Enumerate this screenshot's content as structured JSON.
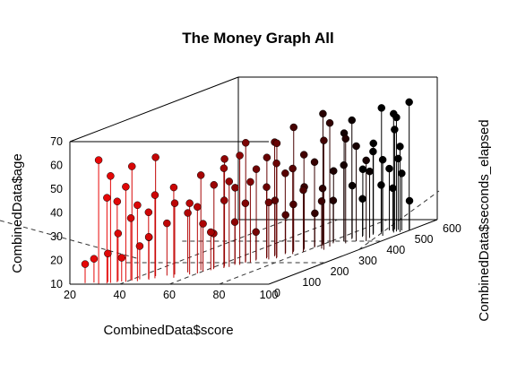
{
  "chart_data": {
    "type": "scatter",
    "title": "The Money Graph All",
    "xlabel": "CombinedData$score",
    "ylabel": "CombinedData$seconds_elapsed",
    "zlabel": "CombinedData$age",
    "xlim": [
      20,
      100
    ],
    "ylim": [
      0,
      600
    ],
    "zlim": [
      10,
      70
    ],
    "x_ticks": [
      "20",
      "40",
      "60",
      "80",
      "100"
    ],
    "y_ticks": [
      "0",
      "100",
      "200",
      "300",
      "400",
      "500",
      "600"
    ],
    "z_ticks": [
      "10",
      "20",
      "30",
      "40",
      "50",
      "60",
      "70"
    ],
    "type_h_drop_lines": true,
    "color_gradient": [
      "#ff0000",
      "#000000"
    ],
    "grid": "dashed base plane grid",
    "points": {
      "x_score": [
        25,
        28,
        31,
        33,
        34,
        35,
        36,
        37,
        38,
        40,
        40,
        41,
        43,
        44,
        45,
        46,
        46,
        47,
        48,
        50,
        52,
        55,
        58,
        60,
        61,
        62,
        63,
        64,
        65,
        66,
        67,
        68,
        69,
        70,
        71,
        72,
        72,
        73,
        74,
        75,
        75,
        76,
        77,
        78,
        79,
        80,
        80,
        81,
        82,
        83,
        84,
        85,
        85,
        86,
        87,
        88,
        89,
        90,
        90,
        91,
        92,
        93,
        94,
        95,
        96,
        97,
        98,
        99,
        55,
        60,
        65,
        70,
        75,
        80,
        85,
        90,
        95,
        100,
        62,
        68,
        74,
        78,
        84,
        88,
        92,
        96,
        58,
        66,
        76,
        86,
        94
      ],
      "y_seconds": [
        10,
        15,
        5,
        20,
        8,
        12,
        30,
        18,
        25,
        40,
        22,
        35,
        45,
        28,
        60,
        50,
        75,
        42,
        55,
        80,
        90,
        110,
        130,
        120,
        150,
        140,
        170,
        160,
        190,
        180,
        210,
        200,
        230,
        220,
        250,
        240,
        270,
        260,
        290,
        280,
        310,
        300,
        330,
        320,
        350,
        340,
        370,
        360,
        390,
        380,
        410,
        400,
        430,
        420,
        450,
        440,
        470,
        460,
        490,
        480,
        500,
        510,
        495,
        505,
        490,
        500,
        485,
        510,
        60,
        100,
        150,
        200,
        250,
        300,
        350,
        400,
        450,
        500,
        130,
        180,
        230,
        280,
        330,
        380,
        430,
        480,
        90,
        160,
        240,
        320,
        400
      ],
      "z_age": [
        18,
        20,
        62,
        22,
        46,
        55,
        30,
        44,
        20,
        36,
        50,
        58,
        24,
        42,
        27,
        38,
        60,
        28,
        45,
        32,
        40,
        35,
        50,
        30,
        45,
        25,
        55,
        38,
        42,
        28,
        60,
        35,
        48,
        22,
        52,
        40,
        33,
        58,
        26,
        44,
        62,
        30,
        36,
        50,
        24,
        46,
        65,
        34,
        40,
        28,
        55,
        42,
        32,
        60,
        38,
        26,
        48,
        45,
        62,
        30,
        36,
        52,
        28,
        40,
        58,
        34,
        46,
        22,
        48,
        38,
        52,
        44,
        58,
        36,
        62,
        50,
        42,
        64,
        26,
        56,
        34,
        46,
        30,
        54,
        38,
        60,
        40,
        46,
        50,
        56,
        44
      ]
    }
  }
}
